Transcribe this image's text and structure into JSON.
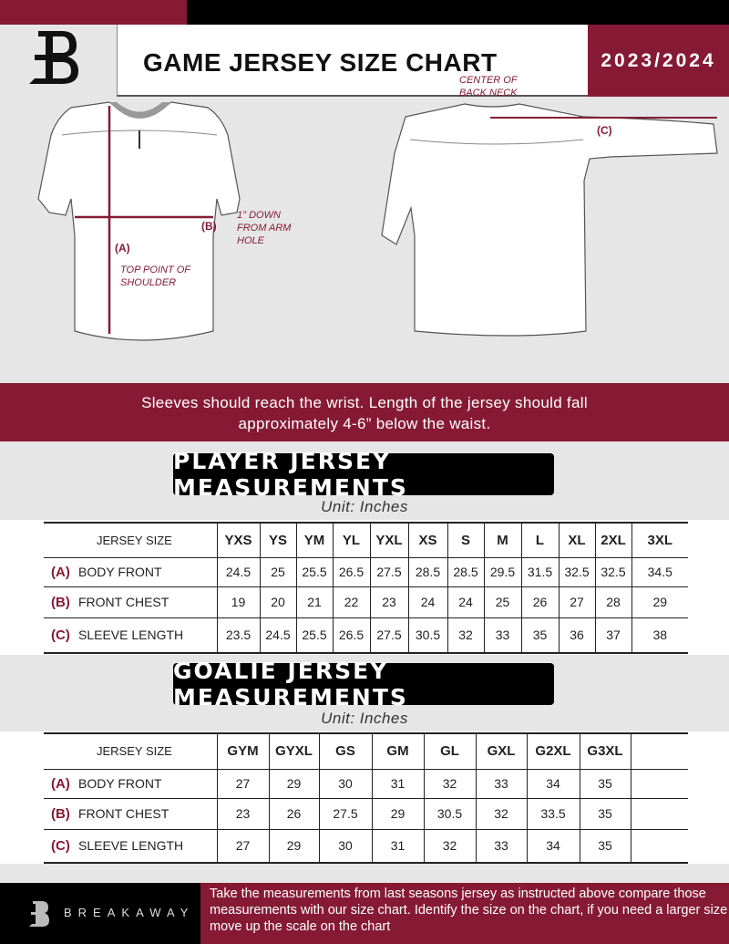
{
  "header": {
    "title": "GAME JERSEY SIZE CHART",
    "season": "2023/2024"
  },
  "diagram": {
    "front_notes": {
      "a_label": "(A)",
      "a_note": "TOP POINT OF SHOULDER",
      "b_label": "(B)",
      "b_note": "1\" DOWN FROM ARM HOLE"
    },
    "back_notes": {
      "c_label": "(C)",
      "c_note": "CENTER OF BACK NECK"
    }
  },
  "instructions": "Sleeves should reach the wrist. Length of the jersey should fall approximately 4-6” below the waist.",
  "player": {
    "title": "PLAYER JERSEY MEASUREMENTS",
    "unit": "Unit: Inches",
    "size_header": "JERSEY SIZE",
    "sizes": [
      "YXS",
      "YS",
      "YM",
      "YL",
      "YXL",
      "XS",
      "S",
      "M",
      "L",
      "XL",
      "2XL",
      "3XL"
    ],
    "rows": [
      {
        "code": "(A)",
        "name": "BODY FRONT",
        "values": [
          "24.5",
          "25",
          "25.5",
          "26.5",
          "27.5",
          "28.5",
          "28.5",
          "29.5",
          "31.5",
          "32.5",
          "32.5",
          "34.5"
        ]
      },
      {
        "code": "(B)",
        "name": "FRONT CHEST",
        "values": [
          "19",
          "20",
          "21",
          "22",
          "23",
          "24",
          "24",
          "25",
          "26",
          "27",
          "28",
          "29"
        ]
      },
      {
        "code": "(C)",
        "name": "SLEEVE LENGTH",
        "values": [
          "23.5",
          "24.5",
          "25.5",
          "26.5",
          "27.5",
          "30.5",
          "32",
          "33",
          "35",
          "36",
          "37",
          "38"
        ]
      }
    ]
  },
  "goalie": {
    "title": "GOALIE JERSEY MEASUREMENTS",
    "unit": "Unit: Inches",
    "size_header": "JERSEY SIZE",
    "sizes": [
      "GYM",
      "GYXL",
      "GS",
      "GM",
      "GL",
      "GXL",
      "G2XL",
      "G3XL",
      ""
    ],
    "rows": [
      {
        "code": "(A)",
        "name": "BODY FRONT",
        "values": [
          "27",
          "29",
          "30",
          "31",
          "32",
          "33",
          "34",
          "35",
          ""
        ]
      },
      {
        "code": "(B)",
        "name": "FRONT CHEST",
        "values": [
          "23",
          "26",
          "27.5",
          "29",
          "30.5",
          "32",
          "33.5",
          "35",
          ""
        ]
      },
      {
        "code": "(C)",
        "name": "SLEEVE LENGTH",
        "values": [
          "27",
          "29",
          "30",
          "31",
          "32",
          "33",
          "34",
          "35",
          ""
        ]
      }
    ]
  },
  "footer": {
    "brand": "BREAKAWAY",
    "text": "Take the measurements from last seasons jersey as instructed above compare those measurements  with our size chart. Identify the size on the chart, if you need a larger size move up the scale on the chart"
  },
  "colors": {
    "accent": "#861a35",
    "dark": "#000000",
    "background": "#e6e6e7"
  }
}
